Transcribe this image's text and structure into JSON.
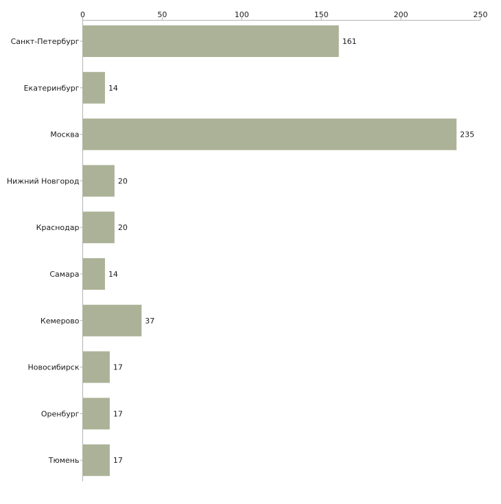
{
  "chart_data": {
    "type": "bar",
    "orientation": "horizontal",
    "title": "",
    "xlabel": "",
    "ylabel": "",
    "categories": [
      "Санкт-Петербург",
      "Екатеринбург",
      "Москва",
      "Нижний Новгород",
      "Краснодар",
      "Самара",
      "Кемерово",
      "Новосибирск",
      "Оренбург",
      "Тюмень"
    ],
    "values": [
      161,
      14,
      235,
      20,
      20,
      14,
      37,
      17,
      17,
      17
    ],
    "xlim": [
      0,
      250
    ],
    "xticks": [
      0,
      50,
      100,
      150,
      200,
      250
    ],
    "axis_position": "top",
    "grid": false,
    "legend": "none",
    "bar_color": "#acb297",
    "axis_color": "#b3b3b3",
    "text_color": "#1a1a1a"
  }
}
